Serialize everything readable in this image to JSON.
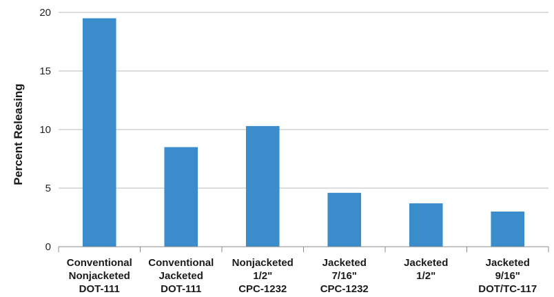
{
  "chart_data": {
    "type": "bar",
    "categories": [
      [
        "Conventional",
        "Nonjacketed",
        "DOT-111"
      ],
      [
        "Conventional",
        "Jacketed",
        "DOT-111"
      ],
      [
        "Nonjacketed",
        "1/2\"",
        "CPC-1232"
      ],
      [
        "Jacketed",
        "7/16\"",
        "CPC-1232"
      ],
      [
        "Jacketed",
        "1/2\""
      ],
      [
        "Jacketed",
        "9/16\"",
        "DOT/TC-117"
      ]
    ],
    "values": [
      19.5,
      8.5,
      10.3,
      4.6,
      3.7,
      3.0
    ],
    "title": "",
    "xlabel": "",
    "ylabel": "Percent Releasing",
    "ylim": [
      0,
      20
    ],
    "yticks": [
      0,
      5,
      10,
      15,
      20
    ],
    "grid": true,
    "colors": {
      "bar": "#3a8ccb",
      "grid": "#b8b8b8",
      "axis": "#8a8a8a"
    }
  }
}
